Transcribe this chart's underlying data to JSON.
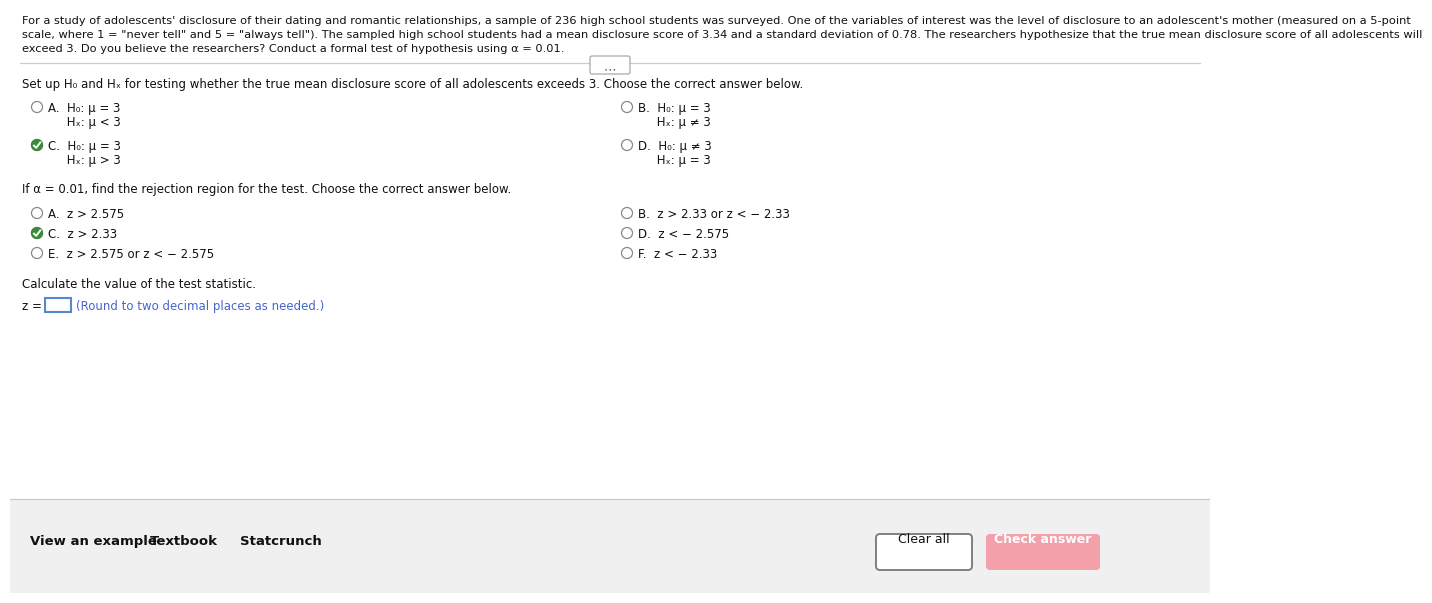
{
  "bg_color": "#ffffff",
  "footer_bg": "#f0f0f0",
  "header_line1": "For a study of adolescents' disclosure of their dating and romantic relationships, a sample of 236 high school students was surveyed. One of the variables of interest was the level of disclosure to an adolescent's mother (measured on a 5-point",
  "header_line2": "scale, where 1 = \"never tell\" and 5 = \"always tell\"). The sampled high school students had a mean disclosure score of 3.34 and a standard deviation of 0.78. The researchers hypothesize that the true mean disclosure score of all adolescents will",
  "header_line3": "exceed 3. Do you believe the researchers? Conduct a formal test of hypothesis using α = 0.01.",
  "section1_title": "Set up H₀ and Hₓ for testing whether the true mean disclosure score of all adolescents exceeds 3. Choose the correct answer below.",
  "q1_A_l1": "A.  H₀: μ = 3",
  "q1_A_l2": "     Hₓ: μ < 3",
  "q1_A_sel": false,
  "q1_B_l1": "B.  H₀: μ = 3",
  "q1_B_l2": "     Hₓ: μ ≠ 3",
  "q1_B_sel": false,
  "q1_C_l1": "C.  H₀: μ = 3",
  "q1_C_l2": "     Hₓ: μ > 3",
  "q1_C_sel": true,
  "q1_D_l1": "D.  H₀: μ ≠ 3",
  "q1_D_l2": "     Hₓ: μ = 3",
  "q1_D_sel": false,
  "section2_title": "If α = 0.01, find the rejection region for the test. Choose the correct answer below.",
  "q2_A": "A.  z > 2.575",
  "q2_A_sel": false,
  "q2_B": "B.  z > 2.33 or z < − 2.33",
  "q2_B_sel": false,
  "q2_C": "C.  z > 2.33",
  "q2_C_sel": true,
  "q2_D": "D.  z < − 2.575",
  "q2_D_sel": false,
  "q2_E": "E.  z > 2.575 or z < − 2.575",
  "q2_E_sel": false,
  "q2_F": "F.  z < − 2.33",
  "q2_F_sel": false,
  "section3_title": "Calculate the value of the test statistic.",
  "z_hint": "(Round to two decimal places as needed.)",
  "footer_items": [
    "View an example",
    "Textbook",
    "Statcrunch"
  ],
  "footer_clear": "Clear all",
  "footer_check": "Check answer",
  "check_color": "#f4a0aa",
  "radio_color": "#888888",
  "green_check": "#3a8a3a",
  "sep_color": "#cccccc",
  "text_color": "#111111",
  "blue_hint": "#4466cc"
}
